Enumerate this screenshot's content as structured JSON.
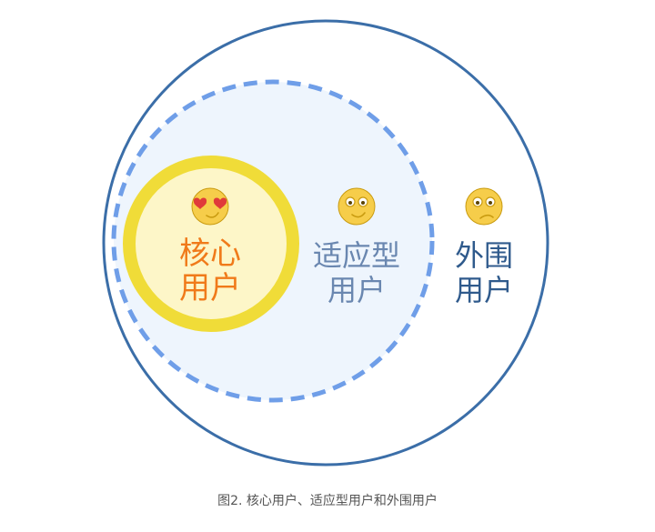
{
  "colors": {
    "outer_ring": "#3b6ea8",
    "adaptive_dash": "#6f9ee8",
    "adaptive_fill": "#eef5fd",
    "core_ring": "#f0dc38",
    "core_fill": "#fdf6c8",
    "core_text": "#f07a1a",
    "adaptive_text": "#6a87b0",
    "peripheral_text": "#2f5a8c",
    "emoji_face": "#f6cd4a",
    "emoji_stroke": "#c99b10",
    "heart": "#e03a3a"
  },
  "groups": [
    {
      "id": "core",
      "label_lines": [
        "核心",
        "用户"
      ],
      "emoji": "heart-eyes-smile-icon"
    },
    {
      "id": "adaptive",
      "label_lines": [
        "适应型",
        "用户"
      ],
      "emoji": "smile-icon"
    },
    {
      "id": "peripheral",
      "label_lines": [
        "外围",
        "用户"
      ],
      "emoji": "frown-icon"
    }
  ],
  "caption": "图2. 核心用户、适应型用户和外围用户"
}
